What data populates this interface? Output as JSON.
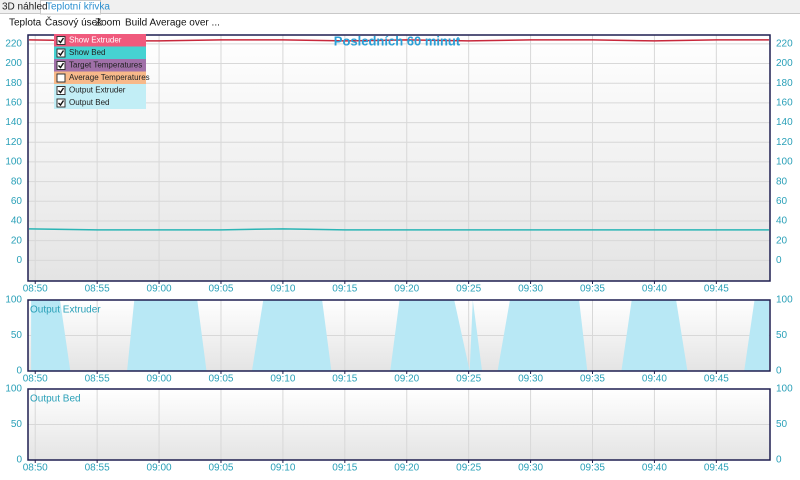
{
  "tabs": [
    "3D náhled",
    "Teplotní křivka"
  ],
  "menu": [
    "Teplota",
    "Časový úsek",
    "Zoom",
    "Build Average over ..."
  ],
  "options": [
    {
      "label": "Show Extruder",
      "checked": true,
      "color": "#f05a7d"
    },
    {
      "label": "Show Bed",
      "checked": true,
      "color": "#46d2d2"
    },
    {
      "label": "Target Temperatures",
      "checked": true,
      "color": "#a070a8"
    },
    {
      "label": "Average Temperatures",
      "checked": false,
      "color": "#f7b98a"
    },
    {
      "label": "Output Extruder",
      "checked": true,
      "color": "#c2eef6"
    },
    {
      "label": "Output Bed",
      "checked": true,
      "color": "#c2eef6"
    }
  ],
  "chart_data": [
    {
      "type": "line",
      "title": "Posledních 60 minut",
      "xlim": [
        "08:49:25",
        "09:49:20"
      ],
      "xticks": [
        "08:50",
        "08:55",
        "09:00",
        "09:05",
        "09:10",
        "09:15",
        "09:20",
        "09:25",
        "09:30",
        "09:35",
        "09:40",
        "09:45"
      ],
      "ylim": [
        -21,
        229
      ],
      "yticks": [
        0,
        20,
        40,
        60,
        80,
        100,
        120,
        140,
        160,
        180,
        200,
        220
      ],
      "grid": true,
      "series": [
        {
          "color": "#c8283c",
          "x": [
            "08:49:30",
            "08:55",
            "09:00",
            "09:05",
            "09:10",
            "09:15",
            "09:20",
            "09:25",
            "09:30",
            "09:35",
            "09:40",
            "09:45",
            "09:49:15"
          ],
          "values": [
            224,
            223,
            223,
            224,
            224,
            223,
            224,
            223,
            224,
            224,
            223,
            224,
            224
          ]
        },
        {
          "color": "#2ab5b5",
          "x": [
            "08:49:30",
            "08:55",
            "09:00",
            "09:05",
            "09:10",
            "09:15",
            "09:20",
            "09:25",
            "09:30",
            "09:35",
            "09:40",
            "09:45",
            "09:49:15"
          ],
          "values": [
            32,
            31,
            31,
            31,
            32,
            31,
            31,
            31,
            31,
            31,
            31,
            31,
            31
          ]
        }
      ]
    },
    {
      "type": "area",
      "label": "Output Extruder",
      "xlim": [
        "08:49:25",
        "09:49:20"
      ],
      "xticks": [
        "08:50",
        "08:55",
        "09:00",
        "09:05",
        "09:10",
        "09:15",
        "09:20",
        "09:25",
        "09:30",
        "09:35",
        "09:40",
        "09:45"
      ],
      "ylim": [
        0,
        100
      ],
      "yticks": [
        0,
        50,
        100
      ],
      "grid": true,
      "series": [
        {
          "color": "#b8e8f5",
          "x": [
            "08:49:40",
            "08:52:00",
            "08:52:50",
            "08:57:25",
            "08:58:00",
            "09:03:05",
            "09:03:50",
            "09:07:30",
            "09:08:25",
            "09:13:10",
            "09:13:55",
            "09:18:40",
            "09:19:25",
            "09:23:50",
            "09:25:05",
            "09:25:20",
            "09:26:05",
            "09:27:20",
            "09:28:20",
            "09:33:55",
            "09:34:35",
            "09:37:20",
            "09:38:10",
            "09:41:45",
            "09:42:40",
            "09:47:15",
            "09:48:05",
            "09:49:15"
          ],
          "values": [
            100,
            100,
            0,
            0,
            100,
            100,
            0,
            0,
            100,
            100,
            0,
            0,
            100,
            100,
            0,
            100,
            0,
            0,
            100,
            100,
            0,
            0,
            100,
            100,
            0,
            0,
            100,
            100
          ]
        }
      ]
    },
    {
      "type": "area",
      "label": "Output Bed",
      "xlim": [
        "08:49:25",
        "09:49:20"
      ],
      "xticks": [
        "08:50",
        "08:55",
        "09:00",
        "09:05",
        "09:10",
        "09:15",
        "09:20",
        "09:25",
        "09:30",
        "09:35",
        "09:40",
        "09:45"
      ],
      "ylim": [
        0,
        100
      ],
      "yticks": [
        0,
        50,
        100
      ],
      "grid": true,
      "series": []
    }
  ]
}
